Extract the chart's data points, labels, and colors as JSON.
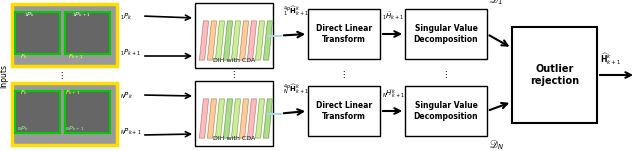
{
  "bg_color": "#ffffff",
  "yellow_border": "#ffdd00",
  "green_border": "#00cc00",
  "box_edge": "#000000",
  "cda_label": "DIH with CDA",
  "dlt_label": "Direct Linear\nTransform",
  "svd_label": "Singular Value\nDecomposition",
  "outlier_label": "Outlier\nrejection",
  "inputs_label": "Inputs",
  "layer_colors": [
    "#ffbbbb",
    "#ffcc99",
    "#ccee99",
    "#aade88",
    "#ccee99",
    "#ffcc99",
    "#ffbbbb",
    "#ccee99",
    "#aade88"
  ],
  "final_out": "$\\widehat{\\mathbf{H}}^k_{k+1}$",
  "script_D1": "$\\mathscr{D}_1$",
  "script_DN": "$\\mathscr{D}_N$"
}
